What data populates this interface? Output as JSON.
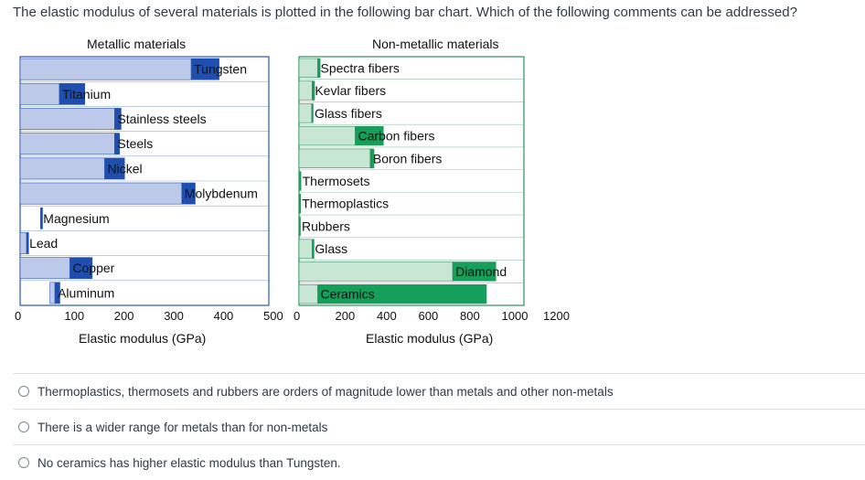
{
  "question": "The elastic modulus of several materials is plotted in the following bar chart. Which of the following comments can be addressed?",
  "colors": {
    "metal_range": "#bcc9e8",
    "metal_high": "#1f4fae",
    "nonmetal_range": "#c8e6d4",
    "nonmetal_high": "#14a05a",
    "frame_metal": "#2956b8",
    "frame_nonmetal": "#2f8f5a"
  },
  "chart_data": [
    {
      "type": "bar",
      "title": "Metallic materials",
      "xlabel": "Elastic modulus (GPa)",
      "xlim": [
        0,
        500
      ],
      "xticks": [
        "0",
        "100",
        "200",
        "300",
        "400",
        "500"
      ],
      "categories": [
        "Tungsten",
        "Titanium",
        "Stainless steels",
        "Steels",
        "Nickel",
        "Molybdenum",
        "Magnesium",
        "Lead",
        "Copper",
        "Aluminum"
      ],
      "ranges": [
        {
          "label": "Tungsten",
          "low": 0,
          "mid": 344,
          "high": 400
        },
        {
          "label": "Titanium",
          "low": 0,
          "mid": 79,
          "high": 130
        },
        {
          "label": "Stainless steels",
          "low": 0,
          "mid": 190,
          "high": 203
        },
        {
          "label": "Steels",
          "low": 0,
          "mid": 190,
          "high": 200
        },
        {
          "label": "Nickel",
          "low": 0,
          "mid": 170,
          "high": 210
        },
        {
          "label": "Molybdenum",
          "low": 0,
          "mid": 325,
          "high": 352
        },
        {
          "label": "Magnesium",
          "low": 41,
          "mid": 41,
          "high": 45
        },
        {
          "label": "Lead",
          "low": 0,
          "mid": 13,
          "high": 17
        },
        {
          "label": "Copper",
          "low": 0,
          "mid": 100,
          "high": 145
        },
        {
          "label": "Aluminum",
          "low": 60,
          "mid": 70,
          "high": 80
        }
      ]
    },
    {
      "type": "bar",
      "title": "Non-metallic materials",
      "xlabel": "Elastic modulus (GPa)",
      "xlim": [
        0,
        1200
      ],
      "xticks": [
        "0",
        "200",
        "400",
        "600",
        "800",
        "1000",
        "1200"
      ],
      "categories": [
        "Spectra fibers",
        "Kevlar fibers",
        "Glass fibers",
        "Carbon fibers",
        "Boron fibers",
        "Thermosets",
        "Thermoplastics",
        "Rubbers",
        "Glass",
        "Diamond",
        "Ceramics"
      ],
      "ranges": [
        {
          "label": "Spectra fibers",
          "low": 0,
          "mid": 100,
          "high": 113
        },
        {
          "label": "Kevlar fibers",
          "low": 0,
          "mid": 70,
          "high": 83
        },
        {
          "label": "Glass fibers",
          "low": 0,
          "mid": 68,
          "high": 73
        },
        {
          "label": "Carbon fibers",
          "low": 0,
          "mid": 300,
          "high": 450
        },
        {
          "label": "Boron fibers",
          "low": 0,
          "mid": 380,
          "high": 400
        },
        {
          "label": "Thermosets",
          "low": 0,
          "mid": 3,
          "high": 10
        },
        {
          "label": "Thermoplastics",
          "low": 0,
          "mid": 1,
          "high": 4
        },
        {
          "label": "Rubbers",
          "low": 0,
          "mid": 0.01,
          "high": 0.1
        },
        {
          "label": "Glass",
          "low": 0,
          "mid": 70,
          "high": 80
        },
        {
          "label": "Diamond",
          "low": 0,
          "mid": 820,
          "high": 1050
        },
        {
          "label": "Ceramics",
          "low": 0,
          "mid": 100,
          "high": 1000
        }
      ]
    }
  ],
  "answers": [
    "Thermoplastics, thermosets and rubbers are orders of magnitude lower than metals and other non-metals",
    "There is a wider range for metals than for non-metals",
    "No ceramics has higher elastic modulus than Tungsten."
  ]
}
